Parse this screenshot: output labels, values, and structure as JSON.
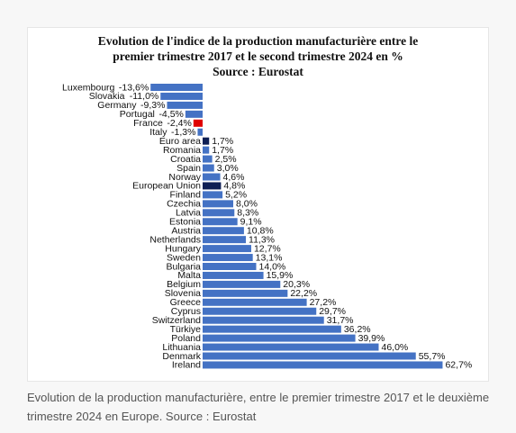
{
  "chart_data": {
    "type": "bar",
    "orientation": "horizontal",
    "title_lines": [
      "Evolution de l'indice de la production manufacturière entre le",
      "premier trimestre 2017 et le second trimestre 2024 en %",
      "Source : Eurostat"
    ],
    "categories": [
      "Luxembourg",
      "Slovakia",
      "Germany",
      "Portugal",
      "France",
      "Italy",
      "Euro area",
      "Romania",
      "Croatia",
      "Spain",
      "Norway",
      "European Union",
      "Finland",
      "Czechia",
      "Latvia",
      "Estonia",
      "Austria",
      "Netherlands",
      "Hungary",
      "Sweden",
      "Bulgaria",
      "Malta",
      "Belgium",
      "Slovenia",
      "Greece",
      "Cyprus",
      "Switzerland",
      "Türkiye",
      "Poland",
      "Lithuania",
      "Denmark",
      "Ireland"
    ],
    "values": [
      -13.6,
      -11.0,
      -9.3,
      -4.5,
      -2.4,
      -1.3,
      1.7,
      1.7,
      2.5,
      3.0,
      4.6,
      4.8,
      5.2,
      8.0,
      8.3,
      9.1,
      10.8,
      11.3,
      12.7,
      13.1,
      14.0,
      15.9,
      20.3,
      22.2,
      27.2,
      29.7,
      31.7,
      36.2,
      39.9,
      46.0,
      55.7,
      62.7
    ],
    "value_labels": [
      "-13,6%",
      "-11,0%",
      "-9,3%",
      "-4,5%",
      "-2,4%",
      "-1,3%",
      "1,7%",
      "1,7%",
      "2,5%",
      "3,0%",
      "4,6%",
      "4,8%",
      "5,2%",
      "8,0%",
      "8,3%",
      "9,1%",
      "10,8%",
      "11,3%",
      "12,7%",
      "13,1%",
      "14,0%",
      "15,9%",
      "20,3%",
      "22,2%",
      "27,2%",
      "29,7%",
      "31,7%",
      "36,2%",
      "39,9%",
      "46,0%",
      "55,7%",
      "62,7%"
    ],
    "xlim": [
      -14,
      63
    ],
    "grid": false,
    "legend": "none",
    "bar_colors": {
      "default": "#4472c4",
      "France": "#e00000",
      "Euro area": "#0e1f54",
      "European Union": "#0e1f54"
    }
  },
  "caption": "Evolution de la production manufacturière, entre le premier trimestre 2017 et le deuxième trimestre 2024 en Europe. Source : Eurostat"
}
